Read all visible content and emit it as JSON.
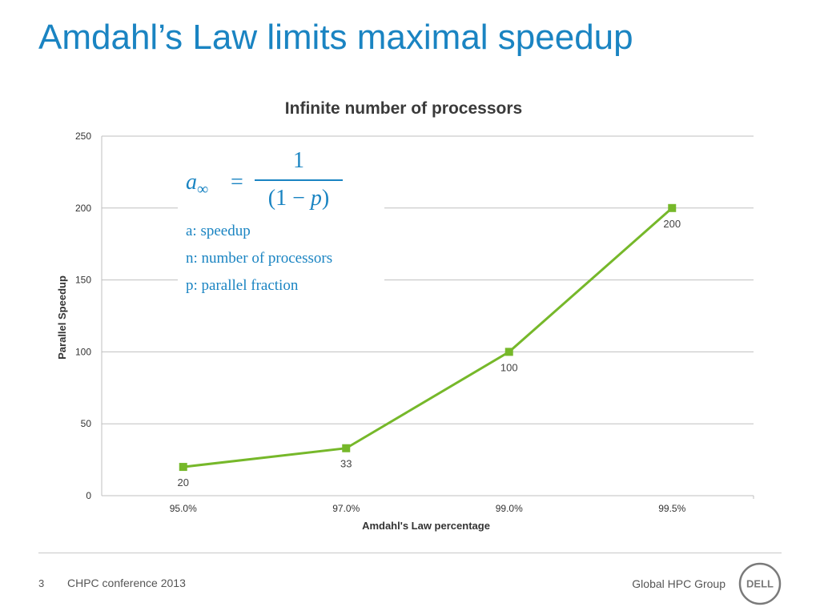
{
  "slide": {
    "title": "Amdahl’s Law limits maximal speedup",
    "page_number": "3",
    "conference": "CHPC conference 2013",
    "group": "Global HPC Group",
    "logo_text": "DELL"
  },
  "formula": {
    "lhs": "a",
    "lhs_sub": "∞",
    "eq": "=",
    "numerator": "1",
    "denominator_left": "(1 − ",
    "denominator_var": "p",
    "denominator_right": ")"
  },
  "legend_notes": [
    "a: speedup",
    "n: number of processors",
    "p: parallel fraction"
  ],
  "colors": {
    "title": "#1a84c2",
    "series": "#76b82a",
    "grid": "#bfbfbf",
    "text": "#333333"
  },
  "chart_data": {
    "type": "line",
    "title": "Infinite number of processors",
    "xlabel": "Amdahl's Law percentage",
    "ylabel": "Parallel Speedup",
    "categories": [
      "95.0%",
      "97.0%",
      "99.0%",
      "99.5%"
    ],
    "series": [
      {
        "values": [
          20,
          33,
          100,
          200
        ],
        "data_labels": [
          "20",
          "33",
          "100",
          "200"
        ]
      }
    ],
    "ylim": [
      0,
      250
    ],
    "yticks": [
      0,
      50,
      100,
      150,
      200,
      250
    ],
    "grid": true,
    "legend": "none"
  }
}
